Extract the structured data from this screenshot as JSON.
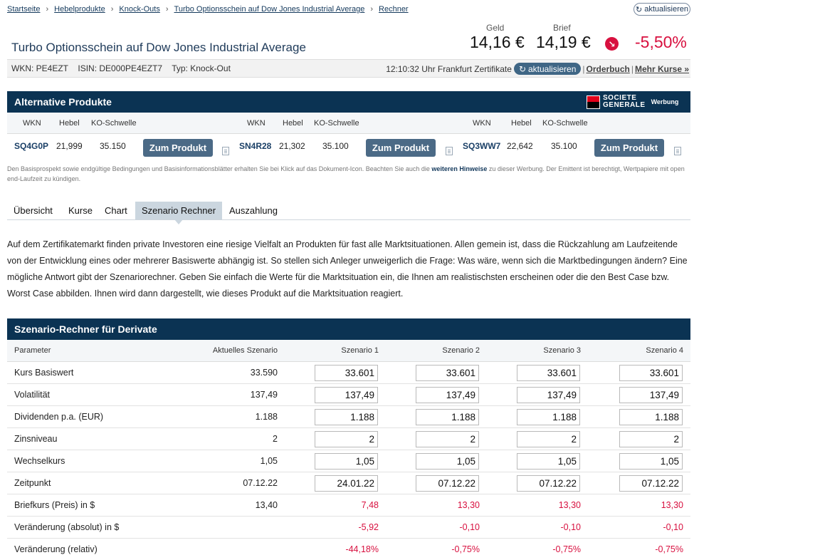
{
  "breadcrumb": [
    "Startseite",
    "Hebelprodukte",
    "Knock-Outs",
    "Turbo Optionsschein auf Dow Jones Industrial Average",
    "Rechner"
  ],
  "refresh_top": "aktualisieren",
  "title": "Turbo Optionsschein auf Dow Jones Industrial Average",
  "quote": {
    "geld_label": "Geld",
    "geld": "14,16 €",
    "brief_label": "Brief",
    "brief": "14,19 €",
    "change": "-5,50%",
    "down_color": "#d8103f"
  },
  "idbar": {
    "wkn": "WKN: PE4EZT",
    "isin": "ISIN: DE000PE4EZT7",
    "typ": "Typ: Knock-Out",
    "time": "12:10:32 Uhr Frankfurt Zertifikate",
    "refresh": "aktualisieren",
    "orderbuch": "Orderbuch",
    "mehr": "Mehr Kurse »"
  },
  "alt": {
    "title": "Alternative Produkte",
    "logo_line1": "SOCIETE",
    "logo_line2": "GENERALE",
    "werbung": "Werbung",
    "col_wkn": "WKN",
    "col_hebel": "Hebel",
    "col_ko": "KO-Schwelle",
    "button": "Zum Produkt",
    "products": [
      {
        "wkn": "SQ4G0P",
        "hebel": "21,999",
        "ko": "35.150"
      },
      {
        "wkn": "SN4R28",
        "hebel": "21,302",
        "ko": "35.100"
      },
      {
        "wkn": "SQ3WW7",
        "hebel": "22,642",
        "ko": "35.100"
      }
    ],
    "disclaimer_a": "Den Basisprospekt sowie endgültige Bedingungen und Basisinformationsblätter erhalten Sie bei Klick auf das Dokument-Icon. Beachten Sie auch die ",
    "disclaimer_link": "weiteren Hinweise",
    "disclaimer_b": " zu dieser Werbung. Der Emittent ist berechtigt, Wertpapiere mit open end-Laufzeit zu kündigen."
  },
  "tabs": [
    "Übersicht",
    "Kurse",
    "Chart",
    "Szenario Rechner",
    "Auszahlung"
  ],
  "intro": "Auf dem Zertifikatemarkt finden private Investoren eine riesige Vielfalt an Produkten für fast alle Marktsituationen. Allen gemein ist, dass die Rückzahlung am Laufzeitende von der Entwicklung eines oder mehrerer Basiswerte abhängig ist. So stellen sich Anleger unweigerlich die Frage: Was wäre, wenn sich die Marktbedingungen ändern? Eine mögliche Antwort gibt der Szenariorechner. Geben Sie einfach die Werte für die Marktsituation ein, die Ihnen am realistischsten erscheinen oder die den Best Case bzw. Worst Case abbilden. Ihnen wird dann dargestellt, wie dieses Produkt auf die Marktsituation reagiert.",
  "scenario": {
    "title": "Szenario-Rechner für Derivate",
    "columns": [
      "Parameter",
      "Aktuelles Szenario",
      "Szenario 1",
      "Szenario 2",
      "Szenario 3",
      "Szenario 4"
    ],
    "input_rows": [
      {
        "label": "Kurs Basiswert",
        "current": "33.590",
        "s": [
          "33.601",
          "33.601",
          "33.601",
          "33.601"
        ]
      },
      {
        "label": "Volatilität",
        "current": "137,49",
        "s": [
          "137,49",
          "137,49",
          "137,49",
          "137,49"
        ]
      },
      {
        "label": "Dividenden p.a. (EUR)",
        "current": "1.188",
        "s": [
          "1.188",
          "1.188",
          "1.188",
          "1.188"
        ]
      },
      {
        "label": "Zinsniveau",
        "current": "2",
        "s": [
          "2",
          "2",
          "2",
          "2"
        ]
      },
      {
        "label": "Wechselkurs",
        "current": "1,05",
        "s": [
          "1,05",
          "1,05",
          "1,05",
          "1,05"
        ]
      },
      {
        "label": "Zeitpunkt",
        "current": "07.12.22",
        "s": [
          "24.01.22",
          "07.12.22",
          "07.12.22",
          "07.12.22"
        ]
      }
    ],
    "result_rows": [
      {
        "label": "Briefkurs (Preis) in $",
        "current": "13,40",
        "s": [
          "7,48",
          "13,30",
          "13,30",
          "13,30"
        ]
      },
      {
        "label": "Veränderung (absolut) in $",
        "current": "",
        "s": [
          "-5,92",
          "-0,10",
          "-0,10",
          "-0,10"
        ]
      },
      {
        "label": "Veränderung (relativ)",
        "current": "",
        "s": [
          "-44,18%",
          "-0,75%",
          "-0,75%",
          "-0,75%"
        ]
      }
    ]
  }
}
